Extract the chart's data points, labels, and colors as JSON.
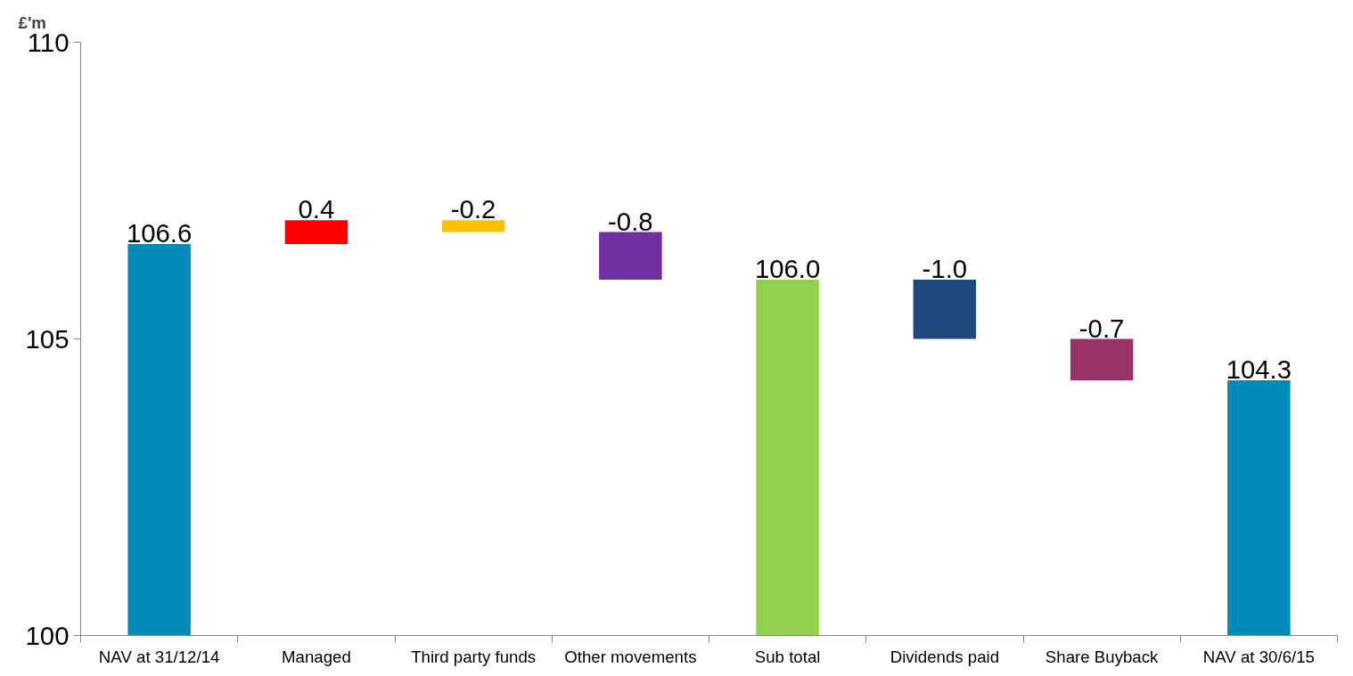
{
  "chart_data": {
    "type": "bar",
    "ylabel": "£'m",
    "categories": [
      "NAV at 31/12/14",
      "Managed",
      "Third party funds",
      "Other movements",
      "Sub total",
      "Dividends paid",
      "Share Buyback",
      "NAV at 30/6/15"
    ],
    "values": [
      6.6,
      0.4,
      -0.2,
      -0.8,
      6.0,
      -1.0,
      -0.7,
      4.3
    ],
    "base": [
      100,
      106.6,
      107.0,
      106.8,
      100,
      106.0,
      105.0,
      100
    ],
    "colors": [
      "#008bba",
      "#ff0000",
      "#ffc000",
      "#7030a0",
      "#92d050",
      "#1f497d",
      "#993366",
      "#008bba"
    ],
    "value_labels": [
      "106.6",
      "0.4",
      "-0.2",
      "-0.8",
      "106.0",
      "-1.0",
      "-0.7",
      "104.3"
    ],
    "ylim": [
      100,
      110
    ],
    "yticks": [
      100,
      105,
      110
    ]
  }
}
